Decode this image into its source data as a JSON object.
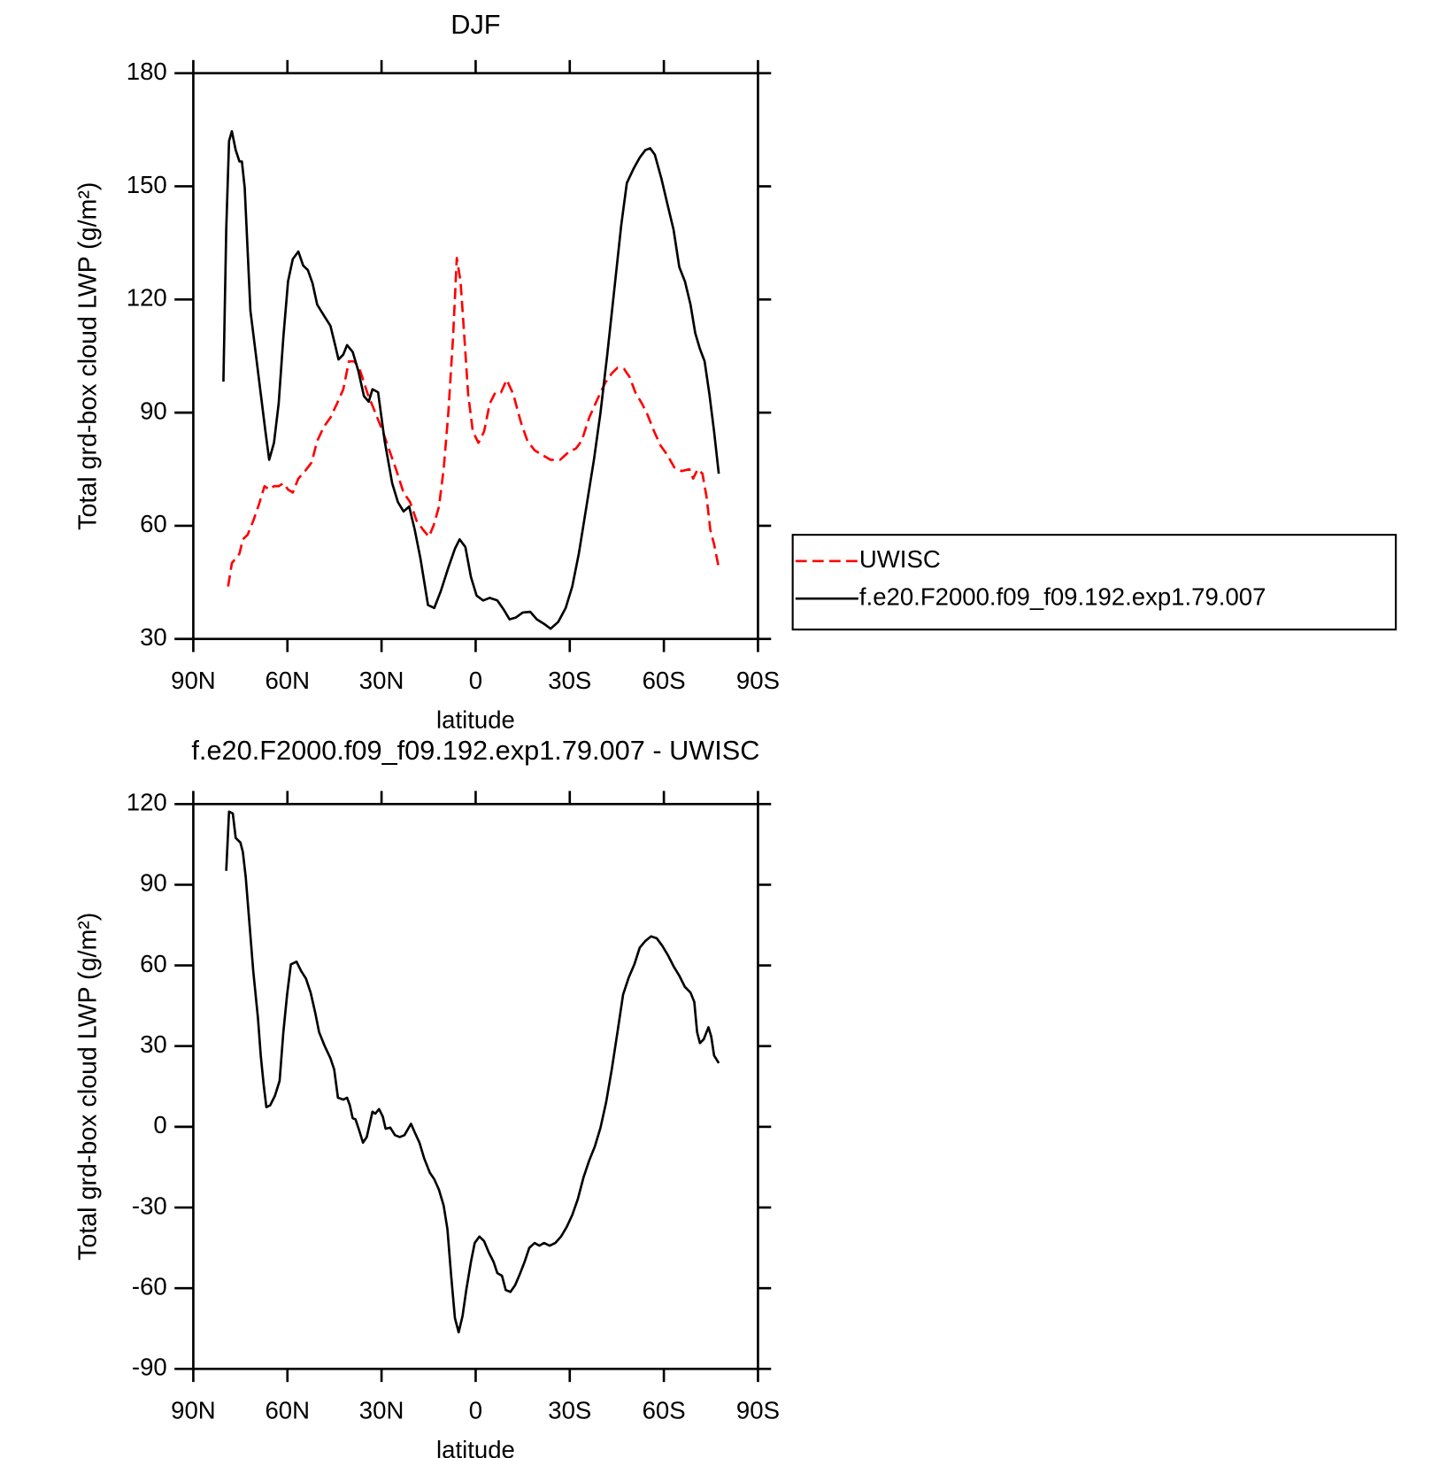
{
  "chart_data": [
    {
      "type": "line",
      "title": "DJF",
      "xlabel": "latitude",
      "ylabel": "Total grd-box cloud LWP (g/m²)",
      "xlim": [
        90,
        -90
      ],
      "xticks": [
        {
          "value": 90,
          "label": "90N"
        },
        {
          "value": 60,
          "label": "60N"
        },
        {
          "value": 30,
          "label": "30N"
        },
        0,
        {
          "value": -30,
          "label": "30S"
        },
        {
          "value": -60,
          "label": "60S"
        },
        {
          "value": -90,
          "label": "90S"
        }
      ],
      "ylim": [
        30,
        180
      ],
      "yticks": [
        30,
        60,
        90,
        120,
        150,
        180
      ],
      "legend": "outside-right",
      "series": [
        {
          "name": "UWISC",
          "color": "#ff0000",
          "dash": true,
          "x": [
            78.9,
            77.7,
            76.5,
            75.3,
            74.2,
            72.7,
            70.9,
            69.1,
            67.3,
            65.8,
            64.3,
            62.8,
            61.3,
            59.8,
            58.3,
            56.5,
            54.4,
            52.3,
            50.5,
            48.4,
            46.3,
            44.2,
            42.2,
            40.4,
            38.6,
            36.8,
            34.4,
            32,
            29.6,
            27.5,
            25.4,
            23,
            20.9,
            18.8,
            16.7,
            14.9,
            13.4,
            11.7,
            10.2,
            8.7,
            7.2,
            6,
            4.8,
            3.6,
            2.4,
            0.9,
            -0.9,
            -2.7,
            -4.5,
            -6.3,
            -8.1,
            -9.9,
            -12,
            -14.4,
            -16.5,
            -18.8,
            -21.2,
            -23.9,
            -26.9,
            -29.6,
            -32,
            -33.8,
            -36.2,
            -38.9,
            -41.3,
            -43.4,
            -45.2,
            -47.3,
            -49.1,
            -50.9,
            -53,
            -54.8,
            -56.9,
            -59,
            -61.1,
            -63.3,
            -65.7,
            -68.1,
            -69.3,
            -70.8,
            -72.3,
            -73.6,
            -74.8,
            -76,
            -77.5
          ],
          "values": [
            43.9,
            50.1,
            51.4,
            52.6,
            56.4,
            57.6,
            61.3,
            65.6,
            70.5,
            69.6,
            70.5,
            70.5,
            71.3,
            69.6,
            68.8,
            72.5,
            74.5,
            76.8,
            82.5,
            86.2,
            88.7,
            92.4,
            96.2,
            103.6,
            103.6,
            101.1,
            94.9,
            90,
            85,
            80,
            75,
            68.8,
            66.3,
            61.3,
            58.9,
            57.1,
            60.1,
            65.1,
            75,
            90,
            109.9,
            131,
            124.8,
            109.9,
            94.9,
            85,
            82,
            85,
            92.4,
            95.4,
            95.4,
            98.7,
            94.9,
            87.5,
            82.5,
            80,
            78.8,
            77.5,
            77.5,
            79.5,
            80.5,
            82.5,
            88.7,
            93.7,
            97.9,
            100.4,
            101.9,
            101.6,
            99.4,
            95.4,
            92.4,
            89.4,
            85,
            81.2,
            78.8,
            75.5,
            74.5,
            75,
            72.5,
            75,
            73.8,
            67.6,
            58.9,
            55.1,
            48.9
          ]
        },
        {
          "name": "f.e20.F2000.f09_f09.192.exp1.79.007",
          "color": "#000000",
          "dash": false,
          "x": [
            80.4,
            79.5,
            78.6,
            77.7,
            76.5,
            75.3,
            74.5,
            73.6,
            71.8,
            70.3,
            68.5,
            67,
            65.8,
            64.3,
            62.8,
            61.3,
            59.8,
            58.3,
            56.5,
            55,
            53.5,
            52,
            50.5,
            48.4,
            46.3,
            44.8,
            43.7,
            42.2,
            41,
            39.2,
            37.4,
            35.6,
            34.1,
            32.9,
            31.1,
            29,
            26.6,
            24.8,
            23,
            21.2,
            19.4,
            17.6,
            15.2,
            13.2,
            11.1,
            8.7,
            6.6,
            5.1,
            3.3,
            1.5,
            -0.3,
            -2.4,
            -4.5,
            -6.9,
            -9,
            -10.8,
            -12.9,
            -15,
            -17.4,
            -19.5,
            -21.8,
            -23.9,
            -26.3,
            -28.7,
            -30.8,
            -32.9,
            -35.3,
            -37.7,
            -39.8,
            -41.9,
            -44.3,
            -46.4,
            -48.2,
            -50.3,
            -52.3,
            -54.1,
            -55.6,
            -57.1,
            -59.2,
            -61.3,
            -63.1,
            -64.9,
            -66.7,
            -68.5,
            -70,
            -71.5,
            -73,
            -74.5,
            -76,
            -77.5
          ],
          "values": [
            98.2,
            138.5,
            162,
            164.6,
            159.6,
            156.6,
            156.6,
            149.6,
            117,
            107,
            95,
            85,
            77.5,
            82,
            92.4,
            110,
            124.8,
            130.7,
            132.7,
            129,
            127.8,
            124.3,
            118.6,
            115.8,
            113,
            107.9,
            104.1,
            105.4,
            107.9,
            106.1,
            101.1,
            94.4,
            92.9,
            96.2,
            95.4,
            82.5,
            71.3,
            66.3,
            63.8,
            65.1,
            58.9,
            51.4,
            39,
            38.2,
            42.7,
            48.9,
            53.9,
            56.4,
            54.4,
            46.4,
            41.5,
            40.2,
            40.9,
            40.2,
            37.7,
            35.2,
            35.7,
            37,
            37.2,
            35.2,
            34,
            32.7,
            34.5,
            38.2,
            43.9,
            52.6,
            65.1,
            77.5,
            90,
            104.9,
            123.5,
            139.7,
            150.9,
            154.6,
            157.6,
            159.6,
            160.1,
            158.4,
            152.1,
            144.7,
            138.5,
            128.6,
            124.8,
            118.6,
            111.1,
            106.9,
            103.6,
            94.9,
            85,
            73.8
          ]
        }
      ]
    },
    {
      "type": "line",
      "title": "f.e20.F2000.f09_f09.192.exp1.79.007 - UWISC",
      "xlabel": "latitude",
      "ylabel": "Total grd-box cloud LWP (g/m²)",
      "xlim": [
        90,
        -90
      ],
      "xticks": [
        {
          "value": 90,
          "label": "90N"
        },
        {
          "value": 60,
          "label": "60N"
        },
        {
          "value": 30,
          "label": "30N"
        },
        0,
        {
          "value": -30,
          "label": "30S"
        },
        {
          "value": -60,
          "label": "60S"
        },
        {
          "value": -90,
          "label": "90S"
        }
      ],
      "ylim": [
        -90,
        120
      ],
      "yticks": [
        -90,
        -60,
        -30,
        0,
        30,
        60,
        90,
        120
      ],
      "color": "#000000",
      "x": [
        79.5,
        78.6,
        77.4,
        76.5,
        75,
        74.2,
        73.3,
        72.1,
        70.9,
        69.4,
        68.5,
        67.6,
        66.7,
        65.5,
        64,
        62.5,
        61.3,
        60.1,
        58.9,
        57.1,
        55.6,
        54.1,
        52.6,
        51.1,
        49.9,
        48.1,
        46.3,
        45.1,
        43.9,
        42.2,
        41,
        40.1,
        39.2,
        38.3,
        37.1,
        35.9,
        34.7,
        32.9,
        32,
        30.8,
        29.6,
        28.7,
        27.2,
        25.7,
        24.2,
        22.7,
        20.6,
        19.4,
        17.9,
        16.4,
        14.6,
        13.2,
        11.7,
        10.2,
        9,
        7.8,
        6.6,
        5.4,
        4.2,
        3,
        1.5,
        0.3,
        -1.2,
        -2.7,
        -4.2,
        -5.7,
        -6.9,
        -8.4,
        -9.6,
        -11.1,
        -12.6,
        -14.1,
        -15.6,
        -17.1,
        -18.8,
        -20.3,
        -21.8,
        -23.6,
        -25.4,
        -27.2,
        -29,
        -30.8,
        -32.6,
        -34.4,
        -36.2,
        -38,
        -39.8,
        -41.6,
        -43.4,
        -45.2,
        -47,
        -48.8,
        -50.6,
        -52.3,
        -54.1,
        -55.9,
        -57.7,
        -59.5,
        -61.3,
        -63.1,
        -64.9,
        -66.7,
        -68.5,
        -69.7,
        -70.6,
        -71.5,
        -72.7,
        -74.2,
        -75.1,
        -76,
        -77.5
      ],
      "values": [
        95.2,
        117.2,
        116.5,
        107.4,
        105.7,
        102.2,
        92.8,
        75.4,
        57.9,
        40.5,
        26.5,
        16,
        7.3,
        8,
        11.5,
        17.1,
        35.2,
        49.2,
        60.4,
        61.4,
        57.9,
        55.1,
        49.9,
        42.2,
        35.2,
        30,
        25.5,
        21.3,
        10.8,
        10.1,
        10.8,
        8,
        3.2,
        2.8,
        -1.4,
        -5.9,
        -3.8,
        5.6,
        4.9,
        6.6,
        3.8,
        -0.7,
        -0.3,
        -3.1,
        -3.8,
        -3.1,
        1.1,
        -2.1,
        -5.9,
        -11.8,
        -17.1,
        -19.5,
        -23.4,
        -29.3,
        -38,
        -55.4,
        -71.1,
        -76.4,
        -70.4,
        -60.7,
        -50.2,
        -43.2,
        -40.8,
        -42.5,
        -46.7,
        -50.2,
        -54.4,
        -55.4,
        -60.7,
        -61.4,
        -58.9,
        -54.7,
        -50.2,
        -45,
        -43.2,
        -44.2,
        -43.2,
        -44.2,
        -43.2,
        -40.8,
        -37.3,
        -32.8,
        -26.8,
        -18.8,
        -12.5,
        -7.3,
        -0.3,
        9.1,
        21.3,
        35.2,
        49.2,
        55.5,
        60.4,
        66.6,
        69.1,
        70.8,
        70.1,
        67.3,
        63.8,
        59.7,
        56.2,
        52,
        49.9,
        46.4,
        35.2,
        31.1,
        32.5,
        37,
        33.5,
        26.5,
        23.7
      ]
    }
  ]
}
